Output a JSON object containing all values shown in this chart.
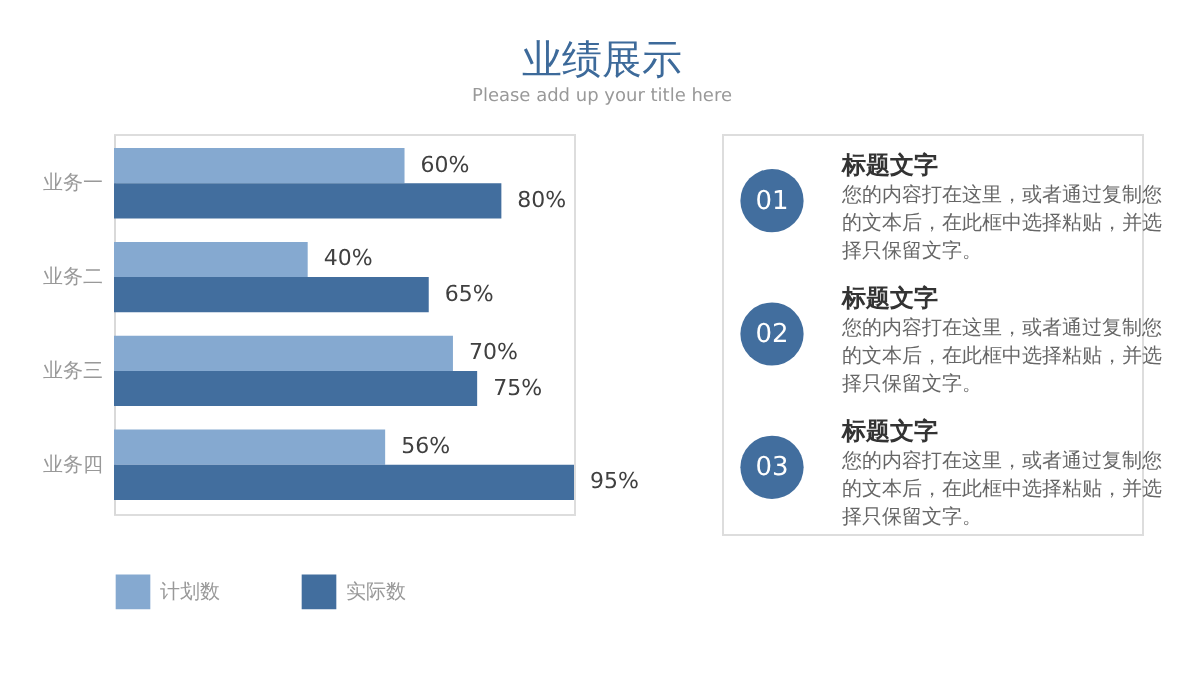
{
  "chart_data": [
    {
      "type": "bar",
      "orientation": "horizontal",
      "title": "业绩展示",
      "subtitle": "Please add up your title here",
      "categories": [
        "业务一",
        "业务二",
        "业务三",
        "业务四"
      ],
      "series": [
        {
          "name": "计划数",
          "color": "#85a9d0",
          "values": [
            60,
            40,
            70,
            56
          ],
          "value_labels": [
            "60%",
            "40%",
            "70%",
            "56%"
          ]
        },
        {
          "name": "实际数",
          "color": "#426e9e",
          "values": [
            80,
            65,
            75,
            95
          ],
          "value_labels": [
            "80%",
            "65%",
            "75%",
            "95%"
          ]
        }
      ],
      "legend": "bottom",
      "grid": false
    },
    {
      "type": "other",
      "annotations": [
        "01",
        "标题文字",
        "您的内容打在这里，或者通过复制您的文本后，在此框中选择粘贴，并选择只保留文字。",
        "02",
        "标题文字",
        "您的内容打在这里，或者通过复制您的文本后，在此框中选择粘贴，并选择只保留文字。",
        "03",
        "标题文字",
        "您的内容打在这里，或者通过复制您的文本后，在此框中选择粘贴，并选择只保留文字。"
      ]
    }
  ]
}
